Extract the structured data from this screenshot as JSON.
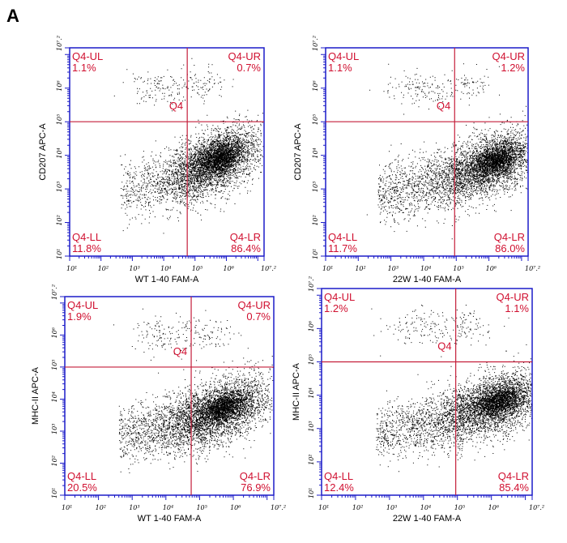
{
  "figure": {
    "letter": "A"
  },
  "chart_data": [
    {
      "type": "scatter",
      "plot": "flow-cytometry-quadrant-dot-plot",
      "xlabel": "WT 1-40 FAM-A",
      "ylabel": "CD207 APC-A",
      "xlim": [
        1,
        7.2
      ],
      "ylim": [
        1,
        7.2
      ],
      "log_scale": true,
      "x_tick_labels": [
        "10¹",
        "10²",
        "10³",
        "10⁴",
        "10⁵",
        "10⁶",
        "10⁷.²"
      ],
      "y_tick_labels": [
        "10¹",
        "10²",
        "10³",
        "10⁴",
        "10⁵",
        "10⁶",
        "10⁷.²"
      ],
      "gate_name": "Q4",
      "gate_x": 4.75,
      "gate_y": 5.0,
      "quadrants": {
        "UL": {
          "name": "Q4-UL",
          "percent": "1.1%"
        },
        "UR": {
          "name": "Q4-UR",
          "percent": "0.7%"
        },
        "LL": {
          "name": "Q4-LL",
          "percent": "11.8%"
        },
        "LR": {
          "name": "Q4-LR",
          "percent": "86.4%"
        }
      },
      "population": {
        "main_x": 5.6,
        "main_y": 3.8,
        "spread_x": 0.75,
        "spread_y": 0.45,
        "tail": 0.22,
        "count": 3200
      }
    },
    {
      "type": "scatter",
      "plot": "flow-cytometry-quadrant-dot-plot",
      "xlabel": "22W 1-40 FAM-A",
      "ylabel": "CD207 APC-A",
      "xlim": [
        1,
        7.2
      ],
      "ylim": [
        1,
        7.2
      ],
      "log_scale": true,
      "x_tick_labels": [
        "10¹",
        "10²",
        "10³",
        "10⁴",
        "10⁵",
        "10⁶",
        "10⁷.²"
      ],
      "y_tick_labels": [
        "10¹",
        "10²",
        "10³",
        "10⁴",
        "10⁵",
        "10⁶",
        "10⁷.²"
      ],
      "gate_name": "Q4",
      "gate_x": 4.95,
      "gate_y": 5.0,
      "quadrants": {
        "UL": {
          "name": "Q4-UL",
          "percent": "1.1%"
        },
        "UR": {
          "name": "Q4-UR",
          "percent": "1.2%"
        },
        "LL": {
          "name": "Q4-LL",
          "percent": "11.7%"
        },
        "LR": {
          "name": "Q4-LR",
          "percent": "86.0%"
        }
      },
      "population": {
        "main_x": 6.0,
        "main_y": 3.7,
        "spread_x": 0.85,
        "spread_y": 0.45,
        "tail": 0.3,
        "count": 3200
      }
    },
    {
      "type": "scatter",
      "plot": "flow-cytometry-quadrant-dot-plot",
      "xlabel": "WT 1-40 FAM-A",
      "ylabel": "MHC-II APC-A",
      "xlim": [
        1,
        7.2
      ],
      "ylim": [
        1,
        7.2
      ],
      "log_scale": true,
      "x_tick_labels": [
        "10¹",
        "10²",
        "10³",
        "10⁴",
        "10⁵",
        "10⁶",
        "10⁷.²"
      ],
      "y_tick_labels": [
        "10¹",
        "10²",
        "10³",
        "10⁴",
        "10⁵",
        "10⁶",
        "10⁷.²"
      ],
      "gate_name": "Q4",
      "gate_x": 4.75,
      "gate_y": 5.0,
      "quadrants": {
        "UL": {
          "name": "Q4-UL",
          "percent": "1.9%"
        },
        "UR": {
          "name": "Q4-UR",
          "percent": "0.7%"
        },
        "LL": {
          "name": "Q4-LL",
          "percent": "20.5%"
        },
        "LR": {
          "name": "Q4-LR",
          "percent": "76.9%"
        }
      },
      "population": {
        "main_x": 5.5,
        "main_y": 3.6,
        "spread_x": 0.85,
        "spread_y": 0.5,
        "tail": 0.3,
        "count": 3200
      }
    },
    {
      "type": "scatter",
      "plot": "flow-cytometry-quadrant-dot-plot",
      "xlabel": "22W 1-40 FAM-A",
      "ylabel": "MHC-II APC-A",
      "xlim": [
        1,
        7.2
      ],
      "ylim": [
        1,
        7.2
      ],
      "log_scale": true,
      "x_tick_labels": [
        "10¹",
        "10²",
        "10³",
        "10⁴",
        "10⁵",
        "10⁶",
        "10⁷.²"
      ],
      "y_tick_labels": [
        "10¹",
        "10²",
        "10³",
        "10⁴",
        "10⁵",
        "10⁶",
        "10⁷.²"
      ],
      "gate_name": "Q4",
      "gate_x": 4.95,
      "gate_y": 5.0,
      "quadrants": {
        "UL": {
          "name": "Q4-UL",
          "percent": "1.2%"
        },
        "UR": {
          "name": "Q4-UR",
          "percent": "1.1%"
        },
        "LL": {
          "name": "Q4-LL",
          "percent": "12.4%"
        },
        "LR": {
          "name": "Q4-LR",
          "percent": "85.4%"
        }
      },
      "population": {
        "main_x": 6.0,
        "main_y": 3.7,
        "spread_x": 0.85,
        "spread_y": 0.45,
        "tail": 0.3,
        "count": 3200
      }
    }
  ],
  "colors": {
    "frame": "#1c1cc8",
    "gate": "#c41e3a",
    "label": "#d01030",
    "dot": "#000000",
    "tick_text": "#000000"
  }
}
